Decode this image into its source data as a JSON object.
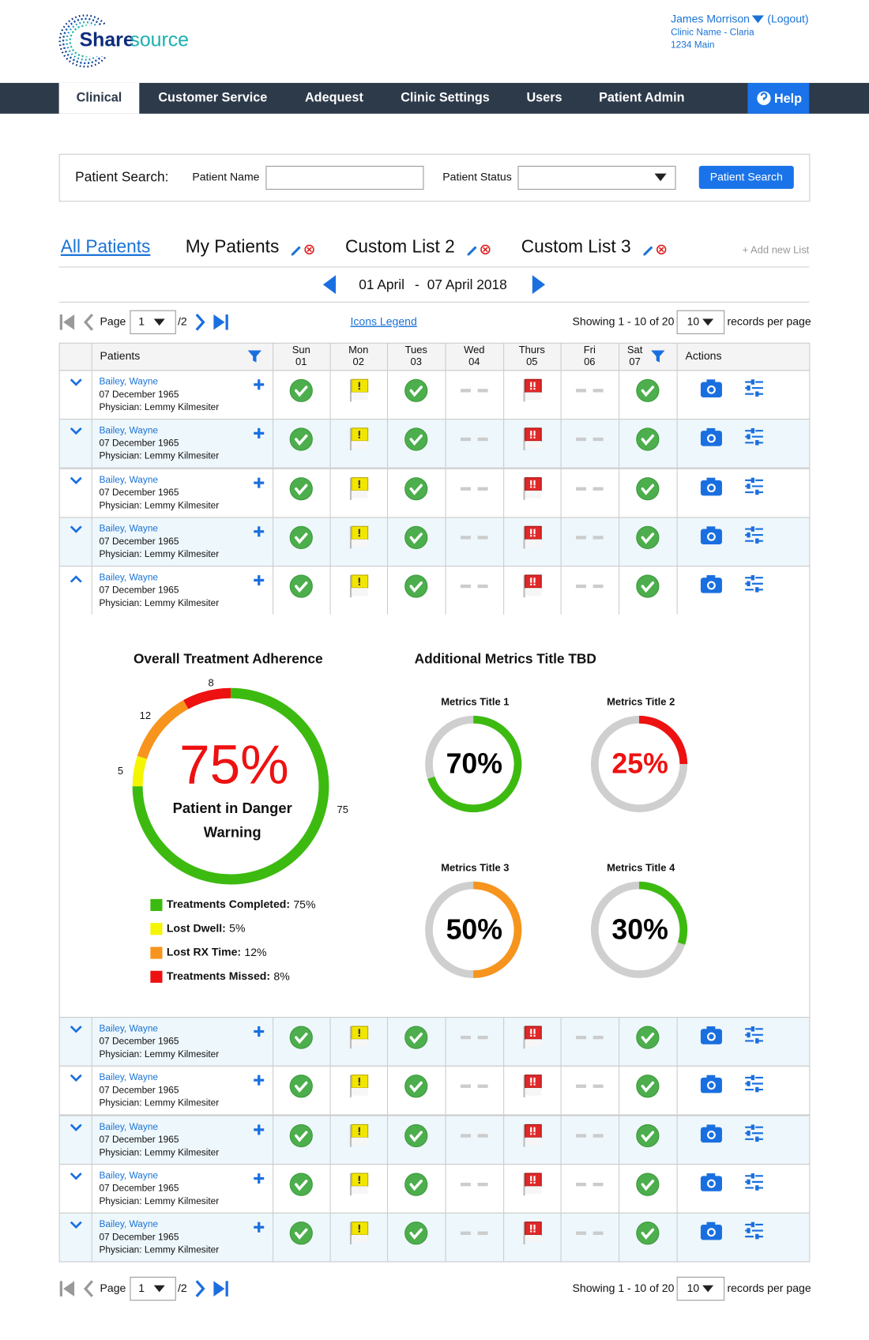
{
  "header": {
    "user_name": "James Morrison",
    "logout": "(Logout)",
    "clinic": "Clinic Name - Claria",
    "address": "1234 Main"
  },
  "logo": {
    "brand_a": "Share",
    "brand_b": "source"
  },
  "nav": {
    "tabs": [
      "Clinical",
      "Customer Service",
      "Adequest",
      "Clinic Settings",
      "Users",
      "Patient Admin"
    ],
    "help": "Help"
  },
  "search": {
    "label": "Patient Search:",
    "name_label": "Patient Name",
    "status_label": "Patient Status",
    "button": "Patient Search"
  },
  "lists": {
    "tabs": [
      "All Patients",
      "My Patients",
      "Custom List 2",
      "Custom List 3"
    ],
    "add": "+ Add new List"
  },
  "date_range": {
    "start": "01 April",
    "sep": "-",
    "end": "07 April 2018"
  },
  "pagination": {
    "page_label": "Page",
    "page": "1",
    "of": "/2",
    "legend": "Icons Legend",
    "showing": "Showing 1 - 10 of 20",
    "per_page": "10",
    "per_page_label": "records per page"
  },
  "table": {
    "header": {
      "patients": "Patients",
      "days": [
        {
          "day": "Sun",
          "date": "01"
        },
        {
          "day": "Mon",
          "date": "02"
        },
        {
          "day": "Tues",
          "date": "03"
        },
        {
          "day": "Wed",
          "date": "04"
        },
        {
          "day": "Thurs",
          "date": "05"
        },
        {
          "day": "Fri",
          "date": "06"
        },
        {
          "day": "Sat",
          "date": "07"
        }
      ],
      "actions": "Actions"
    },
    "rows": [
      {
        "name": "Bailey, Wayne",
        "dob": "07 December 1965",
        "physician": "Physician: Lemmy Kilmesiter"
      },
      {
        "name": "Bailey, Wayne",
        "dob": "07 December 1965",
        "physician": "Physician: Lemmy Kilmesiter"
      },
      {
        "name": "Bailey, Wayne",
        "dob": "07 December 1965",
        "physician": "Physician: Lemmy Kilmesiter"
      },
      {
        "name": "Bailey, Wayne",
        "dob": "07 December 1965",
        "physician": "Physician: Lemmy Kilmesiter"
      },
      {
        "name": "Bailey, Wayne",
        "dob": "07 December 1965",
        "physician": "Physician: Lemmy Kilmesiter"
      },
      {
        "name": "Bailey, Wayne",
        "dob": "07 December 1965",
        "physician": "Physician: Lemmy Kilmesiter"
      },
      {
        "name": "Bailey, Wayne",
        "dob": "07 December 1965",
        "physician": "Physician: Lemmy Kilmesiter"
      },
      {
        "name": "Bailey, Wayne",
        "dob": "07 December 1965",
        "physician": "Physician: Lemmy Kilmesiter"
      },
      {
        "name": "Bailey, Wayne",
        "dob": "07 December 1965",
        "physician": "Physician: Lemmy Kilmesiter"
      },
      {
        "name": "Bailey, Wayne",
        "dob": "07 December 1965",
        "physician": "Physician: Lemmy Kilmesiter"
      }
    ]
  },
  "adherence": {
    "title": "Overall Treatment Adherence",
    "center_label": "75%",
    "status": [
      "Patient in Danger",
      "Warning"
    ],
    "segments": [
      {
        "name": "Treatments Completed:",
        "value": 75,
        "value_label": "75%",
        "color": "#3cba10"
      },
      {
        "name": "Lost Dwell:",
        "value": 5,
        "value_label": "5%",
        "color": "#f5f500"
      },
      {
        "name": "Lost RX Time:",
        "value": 12,
        "value_label": "12%",
        "color": "#f7941d"
      },
      {
        "name": "Treatments Missed:",
        "value": 8,
        "value_label": "8%",
        "color": "#ee1111"
      }
    ]
  },
  "metrics": {
    "title": "Additional Metrics Title TBD",
    "items": [
      {
        "title": "Metrics Title 1",
        "value": 70,
        "value_label": "70%",
        "color": "#3cba10",
        "text_color": "#000000"
      },
      {
        "title": "Metrics Title 2",
        "value": 25,
        "value_label": "25%",
        "color": "#ee1111",
        "text_color": "#ee1111"
      },
      {
        "title": "Metrics Title 3",
        "value": 50,
        "value_label": "50%",
        "color": "#f7941d",
        "text_color": "#000000"
      },
      {
        "title": "Metrics Title 4",
        "value": 30,
        "value_label": "30%",
        "color": "#3cba10",
        "text_color": "#000000"
      }
    ]
  }
}
